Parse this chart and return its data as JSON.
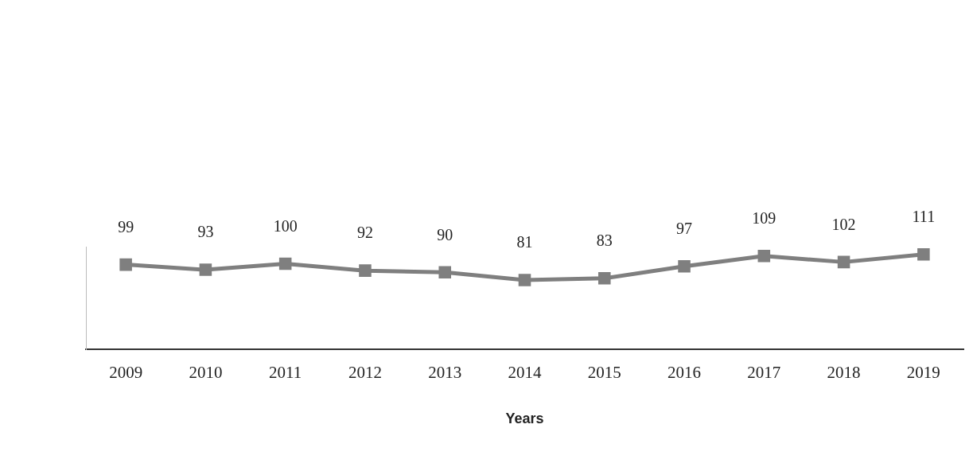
{
  "chart_data": {
    "type": "line",
    "xlabel": "Years",
    "categories": [
      "2009",
      "2010",
      "2011",
      "2012",
      "2013",
      "2014",
      "2015",
      "2016",
      "2017",
      "2018",
      "2019"
    ],
    "series": [
      {
        "color": "#7f7f7f",
        "values": [
          99,
          93,
          100,
          92,
          90,
          81,
          83,
          97,
          109,
          102,
          111
        ]
      }
    ],
    "ylim": [
      0,
      120
    ],
    "tick_labels": "x",
    "data_labels": true,
    "marker": "square",
    "line_style": "solid",
    "legend": false,
    "grid": false
  }
}
